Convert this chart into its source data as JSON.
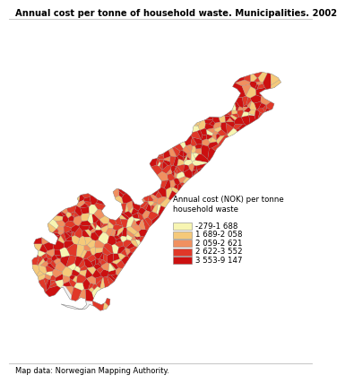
{
  "title": "Annual cost per tonne of household waste. Municipalities. 2002",
  "footer": "Map data: Norwegian Mapping Authority.",
  "legend_title": "Annual cost (NOK) per tonne\nhousehold waste",
  "legend_labels": [
    "-279-1 688",
    "1 689-2 058",
    "2 059-2 621",
    "2 622-3 552",
    "3 553-9 147"
  ],
  "colors": [
    "#f7f5b2",
    "#f5c97a",
    "#f09060",
    "#e03828",
    "#cc1010"
  ],
  "no_data_color": "#f2f2f2",
  "border_color": "#aaaaaa",
  "background_color": "#ffffff",
  "title_fontsize": 7.2,
  "footer_fontsize": 6.0,
  "legend_fontsize": 6.2,
  "legend_title_fontsize": 6.2
}
